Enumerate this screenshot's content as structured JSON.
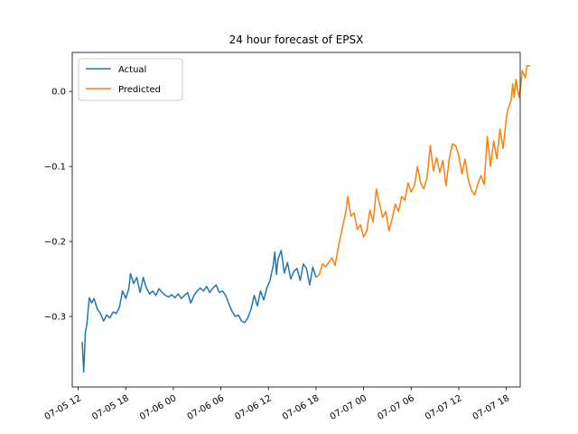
{
  "chart_data": {
    "type": "line",
    "title": "24 hour forecast of EPSX",
    "xlabel": "",
    "ylabel": "",
    "x_axis_type": "datetime_hours",
    "x_ticks": [
      "07-05 12",
      "07-05 18",
      "07-06 00",
      "07-06 06",
      "07-06 12",
      "07-06 18",
      "07-07 00",
      "07-07 06",
      "07-07 12",
      "07-07 18"
    ],
    "x_tick_values": [
      "2024-07-05 12:00",
      "2024-07-05 18:00",
      "2024-07-06 00:00",
      "2024-07-06 06:00",
      "2024-07-06 12:00",
      "2024-07-06 18:00",
      "2024-07-07 00:00",
      "2024-07-07 06:00",
      "2024-07-07 12:00",
      "2024-07-07 18:00"
    ],
    "xlim": [
      "2024-07-05 11:15",
      "2024-07-07 19:45"
    ],
    "y_ticks": [
      0.0,
      -0.1,
      -0.2,
      -0.3
    ],
    "y_tick_labels": [
      "0.0",
      "−0.1",
      "−0.2",
      "−0.3"
    ],
    "ylim": [
      -0.394,
      0.052
    ],
    "grid": false,
    "legend_position": "upper-left",
    "series": [
      {
        "name": "Actual",
        "color": "#1f77b4",
        "points": [
          [
            "2024-07-05 12:30",
            -0.334
          ],
          [
            "2024-07-05 12:42",
            -0.374
          ],
          [
            "2024-07-05 12:54",
            -0.322
          ],
          [
            "2024-07-05 13:06",
            -0.31
          ],
          [
            "2024-07-05 13:24",
            -0.275
          ],
          [
            "2024-07-05 13:42",
            -0.282
          ],
          [
            "2024-07-05 14:00",
            -0.276
          ],
          [
            "2024-07-05 14:24",
            -0.29
          ],
          [
            "2024-07-05 14:48",
            -0.296
          ],
          [
            "2024-07-05 15:12",
            -0.306
          ],
          [
            "2024-07-05 15:36",
            -0.298
          ],
          [
            "2024-07-05 16:00",
            -0.302
          ],
          [
            "2024-07-05 16:24",
            -0.294
          ],
          [
            "2024-07-05 16:48",
            -0.296
          ],
          [
            "2024-07-05 17:12",
            -0.288
          ],
          [
            "2024-07-05 17:36",
            -0.266
          ],
          [
            "2024-07-05 18:00",
            -0.276
          ],
          [
            "2024-07-05 18:24",
            -0.262
          ],
          [
            "2024-07-05 18:36",
            -0.243
          ],
          [
            "2024-07-05 19:00",
            -0.256
          ],
          [
            "2024-07-05 19:24",
            -0.248
          ],
          [
            "2024-07-05 19:48",
            -0.268
          ],
          [
            "2024-07-05 20:12",
            -0.248
          ],
          [
            "2024-07-05 20:36",
            -0.262
          ],
          [
            "2024-07-05 21:00",
            -0.27
          ],
          [
            "2024-07-05 21:24",
            -0.266
          ],
          [
            "2024-07-05 21:48",
            -0.272
          ],
          [
            "2024-07-05 22:12",
            -0.263
          ],
          [
            "2024-07-05 22:36",
            -0.268
          ],
          [
            "2024-07-05 23:00",
            -0.272
          ],
          [
            "2024-07-05 23:24",
            -0.274
          ],
          [
            "2024-07-05 23:48",
            -0.271
          ],
          [
            "2024-07-06 00:12",
            -0.275
          ],
          [
            "2024-07-06 00:36",
            -0.27
          ],
          [
            "2024-07-06 01:00",
            -0.276
          ],
          [
            "2024-07-06 01:24",
            -0.272
          ],
          [
            "2024-07-06 01:48",
            -0.268
          ],
          [
            "2024-07-06 02:12",
            -0.282
          ],
          [
            "2024-07-06 02:36",
            -0.272
          ],
          [
            "2024-07-06 03:00",
            -0.266
          ],
          [
            "2024-07-06 03:24",
            -0.262
          ],
          [
            "2024-07-06 03:48",
            -0.266
          ],
          [
            "2024-07-06 04:12",
            -0.26
          ],
          [
            "2024-07-06 04:36",
            -0.268
          ],
          [
            "2024-07-06 05:00",
            -0.262
          ],
          [
            "2024-07-06 05:24",
            -0.258
          ],
          [
            "2024-07-06 05:48",
            -0.268
          ],
          [
            "2024-07-06 06:12",
            -0.266
          ],
          [
            "2024-07-06 06:36",
            -0.272
          ],
          [
            "2024-07-06 07:00",
            -0.283
          ],
          [
            "2024-07-06 07:24",
            -0.293
          ],
          [
            "2024-07-06 07:48",
            -0.3
          ],
          [
            "2024-07-06 08:12",
            -0.298
          ],
          [
            "2024-07-06 08:36",
            -0.306
          ],
          [
            "2024-07-06 09:00",
            -0.308
          ],
          [
            "2024-07-06 09:24",
            -0.302
          ],
          [
            "2024-07-06 09:48",
            -0.29
          ],
          [
            "2024-07-06 10:12",
            -0.272
          ],
          [
            "2024-07-06 10:36",
            -0.286
          ],
          [
            "2024-07-06 11:00",
            -0.266
          ],
          [
            "2024-07-06 11:24",
            -0.278
          ],
          [
            "2024-07-06 11:48",
            -0.262
          ],
          [
            "2024-07-06 12:12",
            -0.252
          ],
          [
            "2024-07-06 12:36",
            -0.232
          ],
          [
            "2024-07-06 12:48",
            -0.214
          ],
          [
            "2024-07-06 13:00",
            -0.244
          ],
          [
            "2024-07-06 13:12",
            -0.224
          ],
          [
            "2024-07-06 13:36",
            -0.212
          ],
          [
            "2024-07-06 14:00",
            -0.242
          ],
          [
            "2024-07-06 14:24",
            -0.228
          ],
          [
            "2024-07-06 14:48",
            -0.25
          ],
          [
            "2024-07-06 15:12",
            -0.24
          ],
          [
            "2024-07-06 15:36",
            -0.236
          ],
          [
            "2024-07-06 16:00",
            -0.252
          ],
          [
            "2024-07-06 16:24",
            -0.23
          ],
          [
            "2024-07-06 16:48",
            -0.236
          ],
          [
            "2024-07-06 17:12",
            -0.258
          ],
          [
            "2024-07-06 17:36",
            -0.234
          ],
          [
            "2024-07-06 18:00",
            -0.248
          ]
        ]
      },
      {
        "name": "Predicted",
        "color": "#ff7f0e",
        "points": [
          [
            "2024-07-06 18:00",
            -0.248
          ],
          [
            "2024-07-06 18:24",
            -0.244
          ],
          [
            "2024-07-06 18:48",
            -0.23
          ],
          [
            "2024-07-06 19:12",
            -0.234
          ],
          [
            "2024-07-06 19:36",
            -0.228
          ],
          [
            "2024-07-06 20:00",
            -0.222
          ],
          [
            "2024-07-06 20:24",
            -0.232
          ],
          [
            "2024-07-06 20:48",
            -0.208
          ],
          [
            "2024-07-06 21:12",
            -0.188
          ],
          [
            "2024-07-06 21:36",
            -0.168
          ],
          [
            "2024-07-06 21:48",
            -0.158
          ],
          [
            "2024-07-06 22:00",
            -0.14
          ],
          [
            "2024-07-06 22:24",
            -0.166
          ],
          [
            "2024-07-06 22:48",
            -0.162
          ],
          [
            "2024-07-06 23:12",
            -0.184
          ],
          [
            "2024-07-06 23:36",
            -0.178
          ],
          [
            "2024-07-07 00:00",
            -0.194
          ],
          [
            "2024-07-07 00:24",
            -0.186
          ],
          [
            "2024-07-07 00:48",
            -0.158
          ],
          [
            "2024-07-07 01:12",
            -0.174
          ],
          [
            "2024-07-07 01:36",
            -0.13
          ],
          [
            "2024-07-07 02:00",
            -0.15
          ],
          [
            "2024-07-07 02:24",
            -0.168
          ],
          [
            "2024-07-07 02:48",
            -0.16
          ],
          [
            "2024-07-07 03:12",
            -0.186
          ],
          [
            "2024-07-07 03:36",
            -0.17
          ],
          [
            "2024-07-07 04:00",
            -0.15
          ],
          [
            "2024-07-07 04:24",
            -0.16
          ],
          [
            "2024-07-07 04:48",
            -0.14
          ],
          [
            "2024-07-07 05:12",
            -0.145
          ],
          [
            "2024-07-07 05:36",
            -0.122
          ],
          [
            "2024-07-07 06:00",
            -0.134
          ],
          [
            "2024-07-07 06:24",
            -0.126
          ],
          [
            "2024-07-07 06:48",
            -0.1
          ],
          [
            "2024-07-07 07:12",
            -0.122
          ],
          [
            "2024-07-07 07:36",
            -0.13
          ],
          [
            "2024-07-07 08:00",
            -0.116
          ],
          [
            "2024-07-07 08:24",
            -0.072
          ],
          [
            "2024-07-07 08:48",
            -0.106
          ],
          [
            "2024-07-07 09:12",
            -0.088
          ],
          [
            "2024-07-07 09:36",
            -0.108
          ],
          [
            "2024-07-07 10:00",
            -0.092
          ],
          [
            "2024-07-07 10:24",
            -0.126
          ],
          [
            "2024-07-07 10:48",
            -0.09
          ],
          [
            "2024-07-07 11:12",
            -0.07
          ],
          [
            "2024-07-07 11:36",
            -0.072
          ],
          [
            "2024-07-07 12:00",
            -0.086
          ],
          [
            "2024-07-07 12:24",
            -0.11
          ],
          [
            "2024-07-07 12:48",
            -0.09
          ],
          [
            "2024-07-07 13:12",
            -0.118
          ],
          [
            "2024-07-07 13:36",
            -0.132
          ],
          [
            "2024-07-07 14:00",
            -0.138
          ],
          [
            "2024-07-07 14:24",
            -0.124
          ],
          [
            "2024-07-07 14:48",
            -0.112
          ],
          [
            "2024-07-07 15:12",
            -0.124
          ],
          [
            "2024-07-07 15:36",
            -0.06
          ],
          [
            "2024-07-07 16:00",
            -0.1
          ],
          [
            "2024-07-07 16:24",
            -0.066
          ],
          [
            "2024-07-07 16:48",
            -0.09
          ],
          [
            "2024-07-07 17:12",
            -0.05
          ],
          [
            "2024-07-07 17:36",
            -0.076
          ],
          [
            "2024-07-07 18:00",
            -0.036
          ],
          [
            "2024-07-07 18:12",
            -0.024
          ],
          [
            "2024-07-07 18:36",
            -0.012
          ],
          [
            "2024-07-07 18:48",
            0.01
          ],
          [
            "2024-07-07 19:00",
            -0.008
          ],
          [
            "2024-07-07 19:12",
            0.016
          ],
          [
            "2024-07-07 19:36",
            -0.008
          ],
          [
            "2024-07-07 19:48",
            0.006
          ],
          [
            "2024-07-07 20:00",
            0.028
          ],
          [
            "2024-07-07 20:24",
            0.018
          ],
          [
            "2024-07-07 20:36",
            0.034
          ],
          [
            "2024-07-07 21:00",
            0.034
          ]
        ]
      }
    ]
  }
}
